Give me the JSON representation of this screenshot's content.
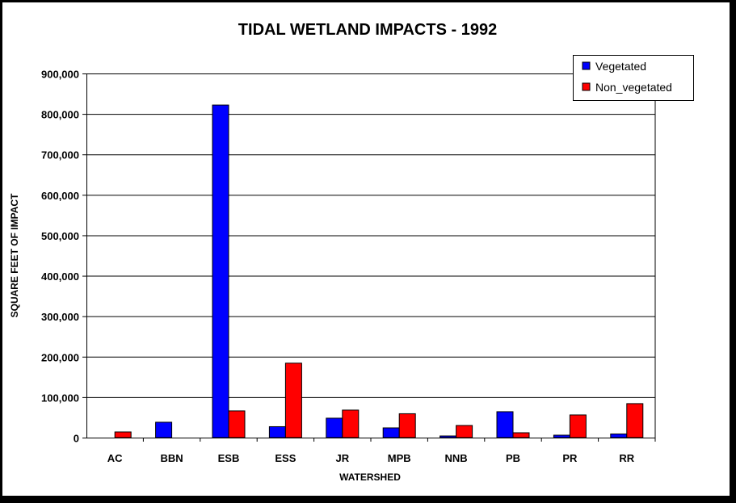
{
  "chart_data": {
    "type": "bar",
    "title": "TIDAL WETLAND IMPACTS - 1992",
    "xlabel": "WATERSHED",
    "ylabel": "SQUARE FEET OF IMPACT",
    "ylim": [
      0,
      900000
    ],
    "ytick_step": 100000,
    "ytick_labels": [
      "0",
      "100,000",
      "200,000",
      "300,000",
      "400,000",
      "500,000",
      "600,000",
      "700,000",
      "800,000",
      "900,000"
    ],
    "grid": true,
    "legend_position": "top-right",
    "categories": [
      "AC",
      "BBN",
      "ESB",
      "ESS",
      "JR",
      "MPB",
      "NNB",
      "PB",
      "PR",
      "RR"
    ],
    "series": [
      {
        "name": "Vegetated",
        "color": "#0000ff",
        "values": [
          0,
          38000,
          822000,
          27000,
          48000,
          24000,
          4000,
          64000,
          6000,
          9000
        ]
      },
      {
        "name": "Non_vegetated",
        "color": "#ff0000",
        "values": [
          14000,
          0,
          66000,
          184000,
          68000,
          59000,
          30000,
          12000,
          56000,
          84000
        ]
      }
    ]
  }
}
